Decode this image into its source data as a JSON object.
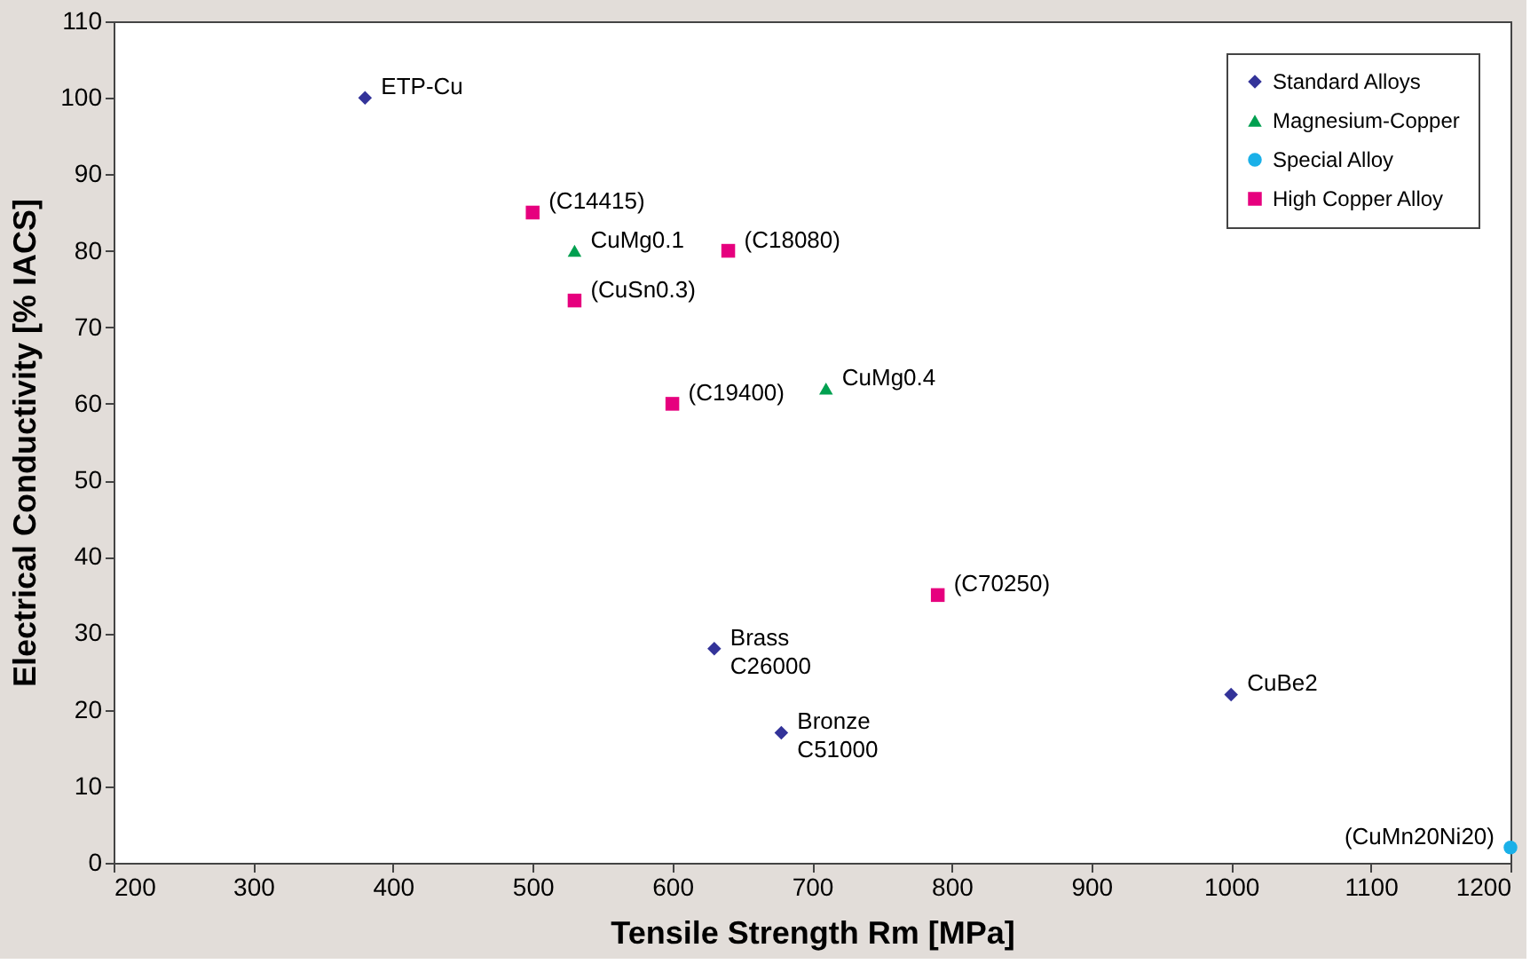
{
  "chart_data": {
    "type": "scatter",
    "xlabel": "Tensile Strength Rm [MPa]",
    "ylabel": "Electrical Conductivity [% IACS]",
    "xlim": [
      200,
      1200
    ],
    "xticks": [
      200,
      300,
      400,
      500,
      600,
      700,
      800,
      900,
      1000,
      1100,
      1200
    ],
    "ylim": [
      0,
      110
    ],
    "yticks": [
      0,
      10,
      20,
      30,
      40,
      50,
      60,
      70,
      80,
      90,
      100,
      110
    ],
    "grid": false,
    "legend": "top right",
    "series": [
      {
        "name": "Standard Alloys",
        "color": "#333399",
        "marker": "diamond",
        "x": [
          380,
          630,
          678,
          1000
        ],
        "values": [
          100,
          28,
          17,
          22
        ]
      },
      {
        "name": "Magnesium-Copper",
        "color": "#00a050",
        "marker": "triangle",
        "x": [
          530,
          710
        ],
        "values": [
          80,
          62
        ]
      },
      {
        "name": "Special Alloy",
        "color": "#1ab0e8",
        "marker": "circle",
        "x": [
          1200
        ],
        "values": [
          2
        ]
      },
      {
        "name": "High Copper Alloy",
        "color": "#e6007e",
        "marker": "square",
        "x": [
          500,
          640,
          530,
          600,
          790
        ],
        "values": [
          85,
          80,
          73.5,
          60,
          35
        ]
      }
    ],
    "annotations": [
      {
        "text": "ETP-Cu",
        "x": 380,
        "y": 100
      },
      {
        "text": "Brass\nC26000",
        "x": 630,
        "y": 28
      },
      {
        "text": "Bronze\nC51000",
        "x": 678,
        "y": 17
      },
      {
        "text": "CuBe2",
        "x": 1000,
        "y": 22
      },
      {
        "text": "CuMg0.1",
        "x": 530,
        "y": 80
      },
      {
        "text": "CuMg0.4",
        "x": 710,
        "y": 62
      },
      {
        "text": "(CuMn20Ni20)",
        "x": 1200,
        "y": 2
      },
      {
        "text": "(C14415)",
        "x": 500,
        "y": 85
      },
      {
        "text": "(C18080)",
        "x": 640,
        "y": 80
      },
      {
        "text": "(CuSn0.3)",
        "x": 530,
        "y": 73.5
      },
      {
        "text": "(C19400)",
        "x": 600,
        "y": 60
      },
      {
        "text": "(C70250)",
        "x": 790,
        "y": 35
      }
    ]
  }
}
